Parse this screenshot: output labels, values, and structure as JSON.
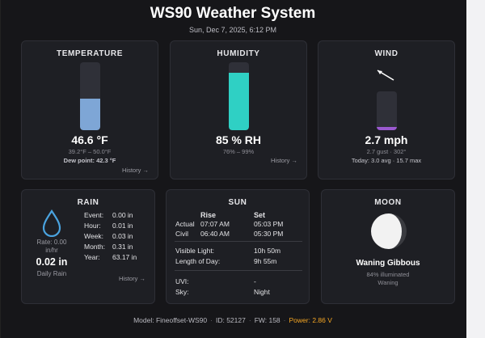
{
  "header": {
    "title": "WS90 Weather System",
    "datetime": "Sun, Dec 7, 2025, 6:12 PM"
  },
  "temperature": {
    "title": "TEMPERATURE",
    "value": "46.6 °F",
    "range": "39.2°F – 50.0°F",
    "dewpoint": "Dew point: 42.3 °F",
    "history_label": "History →",
    "gauge_fill": 0.47,
    "gauge_color": "#7ea6d6"
  },
  "humidity": {
    "title": "HUMIDITY",
    "value": "85 % RH",
    "range": "76% – 99%",
    "history_label": "History →",
    "gauge_fill": 0.85,
    "gauge_color": "#2fd0c4"
  },
  "wind": {
    "title": "WIND",
    "value": "2.7 mph",
    "gust": "2.7 gust · 302°",
    "today": "Today: 3.0 avg · 15.7 max",
    "direction_deg": 302,
    "gauge_fill": 0.08,
    "gauge_color": "#9b59d0"
  },
  "rain": {
    "title": "RAIN",
    "rate": "Rate: 0.00",
    "rate_unit": "in/hr",
    "daily_value": "0.02 in",
    "daily_label": "Daily Rain",
    "history_label": "History →",
    "icon_color": "#4aa3df",
    "rows": [
      {
        "label": "Event:",
        "value": "0.00 in"
      },
      {
        "label": "Hour:",
        "value": "0.01 in"
      },
      {
        "label": "Week:",
        "value": "0.03 in"
      },
      {
        "label": "Month:",
        "value": "0.31 in"
      },
      {
        "label": "Year:",
        "value": "63.17 in"
      }
    ]
  },
  "sun": {
    "title": "SUN",
    "col_rise": "Rise",
    "col_set": "Set",
    "actual_label": "Actual",
    "actual_rise": "07:07 AM",
    "actual_set": "05:03 PM",
    "civil_label": "Civil",
    "civil_rise": "06:40 AM",
    "civil_set": "05:30 PM",
    "visible_label": "Visible Light:",
    "visible_value": "10h 50m",
    "day_label": "Length of Day:",
    "day_value": "9h 55m",
    "uvi_label": "UVI:",
    "uvi_value": "-",
    "sky_label": "Sky:",
    "sky_value": "Night"
  },
  "moon": {
    "title": "MOON",
    "phase": "Waning Gibbous",
    "illumination": "84% illuminated",
    "trend": "Waning"
  },
  "footer": {
    "model": "Model: Fineoffset-WS90",
    "id": "ID: 52127",
    "fw": "FW: 158",
    "power": "Power: 2.86 V",
    "power_color": "#f5a623"
  }
}
